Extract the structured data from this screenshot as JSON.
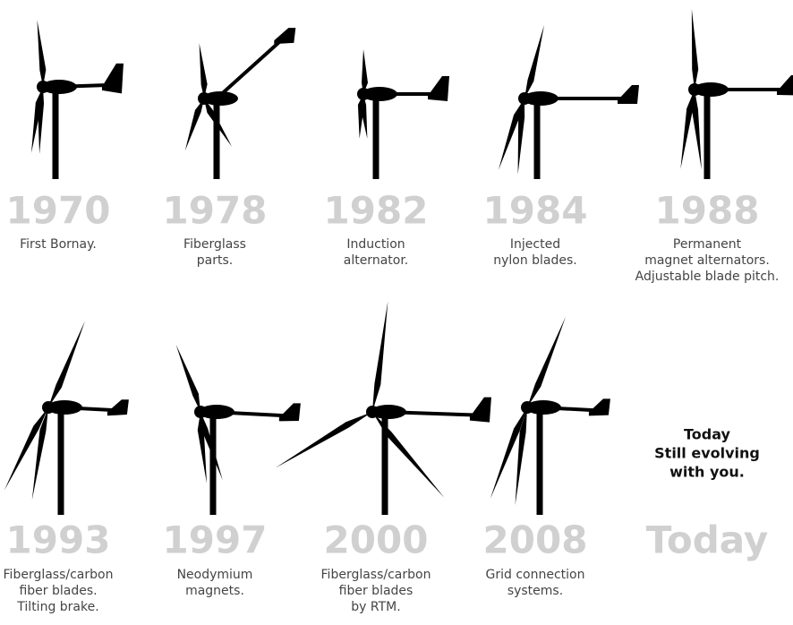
{
  "milestones": [
    {
      "year": "1970",
      "description": [
        "First Bornay."
      ]
    },
    {
      "year": "1978",
      "description": [
        "Fiberglass",
        "parts."
      ]
    },
    {
      "year": "1982",
      "description": [
        "Induction",
        "alternator."
      ]
    },
    {
      "year": "1984",
      "description": [
        "Injected",
        "nylon blades."
      ]
    },
    {
      "year": "1988",
      "description": [
        "Permanent",
        "magnet alternators.",
        "Adjustable blade pitch."
      ]
    },
    {
      "year": "1993",
      "description": [
        "Fiberglass/carbon",
        "fiber blades.",
        "Tilting brake."
      ]
    },
    {
      "year": "1997",
      "description": [
        "Neodymium",
        "magnets."
      ]
    },
    {
      "year": "2000",
      "description": [
        "Fiberglass/carbon",
        "fiber blades",
        "by RTM."
      ]
    },
    {
      "year": "2008",
      "description": [
        "Grid connection",
        "systems."
      ]
    }
  ],
  "today": {
    "message": [
      "Today",
      "Still evolving",
      "with you."
    ],
    "year": "Today"
  }
}
